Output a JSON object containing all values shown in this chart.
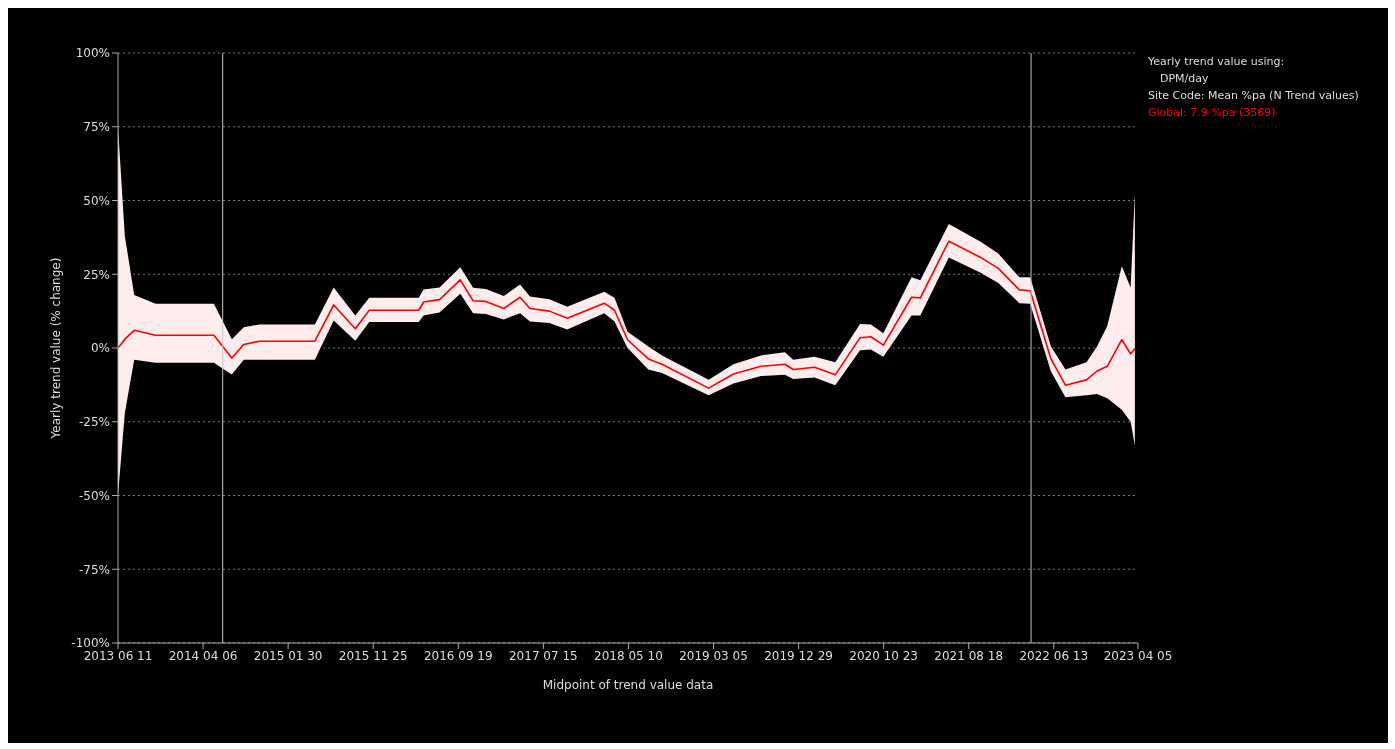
{
  "chart_data": {
    "type": "line",
    "xlabel": "Midpoint of trend value data",
    "ylabel": "Yearly trend value (% change)",
    "legend_title": "Yearly trend value using:",
    "annotations": [
      "DPM/day",
      "Site Code: Mean %pa (N Trend values)"
    ],
    "x": [
      "2013-06-11",
      "2013-07-05",
      "2013-08-07",
      "2013-10-21",
      "2014-05-14",
      "2014-07-16",
      "2014-08-27",
      "2014-10-21",
      "2015-05-04",
      "2015-07-09",
      "2015-09-23",
      "2015-11-11",
      "2016-05-03",
      "2016-05-20",
      "2016-07-15",
      "2016-09-26",
      "2016-11-10",
      "2016-12-25",
      "2017-02-26",
      "2017-04-24",
      "2017-05-29",
      "2017-08-05",
      "2017-10-07",
      "2018-02-14",
      "2018-03-22",
      "2018-05-07",
      "2018-07-19",
      "2018-09-05",
      "2019-02-16",
      "2019-05-14",
      "2019-08-19",
      "2019-11-11",
      "2019-12-10",
      "2020-02-23",
      "2020-05-06",
      "2020-08-01",
      "2020-09-08",
      "2020-10-22",
      "2021-01-29",
      "2021-03-01",
      "2021-06-09",
      "2021-09-29",
      "2021-11-30",
      "2022-02-12",
      "2022-03-22",
      "2022-06-03",
      "2022-07-24",
      "2022-10-06",
      "2022-11-12",
      "2022-12-18",
      "2023-02-07",
      "2023-03-10",
      "2023-03-25"
    ],
    "series": [
      {
        "name": "Global: 7.9 %pa (3569)",
        "color": "#ff0000",
        "values": [
          0,
          3,
          6,
          4.3,
          4.3,
          -3.4,
          1.2,
          2.3,
          2.3,
          14.6,
          6.5,
          12.8,
          12.8,
          15.6,
          16.4,
          23.1,
          16,
          15.8,
          13.4,
          17.2,
          13.4,
          12.5,
          10.1,
          15.2,
          12.8,
          2.8,
          -3.7,
          -5.5,
          -13.6,
          -8.8,
          -6.2,
          -5.5,
          -7.3,
          -6.5,
          -9.1,
          3.5,
          3.8,
          1,
          17.2,
          17,
          36.2,
          30.7,
          27,
          19.7,
          19.4,
          -3.7,
          -12.6,
          -10.8,
          -7.8,
          -6.2,
          2.8,
          -2,
          -0.2
        ],
        "upper": [
          75,
          38,
          18,
          15,
          15,
          3,
          7,
          8,
          8,
          20.5,
          11,
          17,
          17,
          19.8,
          20.5,
          27.4,
          20.4,
          20,
          17.6,
          21.5,
          17.5,
          16.5,
          14,
          19.1,
          17,
          5.5,
          0.5,
          -2.5,
          -10.8,
          -5.5,
          -2.5,
          -1.4,
          -4,
          -3,
          -4.8,
          8.1,
          8,
          5,
          24,
          23,
          42,
          36,
          32,
          24,
          24,
          0.5,
          -7.3,
          -4.8,
          0.5,
          7.5,
          27.7,
          20.5,
          52.6
        ],
        "lower": [
          -50,
          -22,
          -4,
          -5,
          -5,
          -9,
          -4,
          -4,
          -4,
          9.3,
          2.5,
          8.8,
          8.8,
          11,
          12,
          18.4,
          11.8,
          11.5,
          9.7,
          11.8,
          9,
          8.5,
          6.3,
          11.8,
          9,
          0,
          -7.3,
          -8.5,
          -16,
          -12,
          -9.5,
          -9.1,
          -10.5,
          -10,
          -12.6,
          -0.8,
          -0.5,
          -3,
          11,
          11,
          30.7,
          25.5,
          22,
          15.2,
          15,
          -8,
          -16.7,
          -16,
          -15.6,
          -17,
          -20.9,
          -25,
          -33
        ]
      }
    ],
    "xlim": [
      "2013-06-11",
      "2023-04-05"
    ],
    "xticks": [
      {
        "value": "2013-06-11",
        "label": "2013 06 11"
      },
      {
        "value": "2014-04-06",
        "label": "2014 04 06"
      },
      {
        "value": "2015-01-30",
        "label": "2015 01 30"
      },
      {
        "value": "2015-11-25",
        "label": "2015 11 25"
      },
      {
        "value": "2016-09-19",
        "label": "2016 09 19"
      },
      {
        "value": "2017-07-15",
        "label": "2017 07 15"
      },
      {
        "value": "2018-05-10",
        "label": "2018 05 10"
      },
      {
        "value": "2019-03-05",
        "label": "2019 03 05"
      },
      {
        "value": "2019-12-29",
        "label": "2019 12 29"
      },
      {
        "value": "2020-10-23",
        "label": "2020 10 23"
      },
      {
        "value": "2021-08-18",
        "label": "2021 08 18"
      },
      {
        "value": "2022-06-13",
        "label": "2022 06 13"
      },
      {
        "value": "2023-04-05",
        "label": "2023 04 05"
      }
    ],
    "ylim": [
      -100,
      100
    ],
    "yticks": [
      {
        "value": -100,
        "label": "-100%"
      },
      {
        "value": -75,
        "label": "-75%"
      },
      {
        "value": -50,
        "label": "-50%"
      },
      {
        "value": -25,
        "label": "-25%"
      },
      {
        "value": 0,
        "label": "0%"
      },
      {
        "value": 25,
        "label": "25%"
      },
      {
        "value": 50,
        "label": "50%"
      },
      {
        "value": 75,
        "label": "75%"
      },
      {
        "value": 100,
        "label": "100%"
      }
    ],
    "ref_lines": [
      {
        "axis": "x",
        "value": "2014-06-14",
        "color": "#c8c8c8"
      },
      {
        "axis": "x",
        "value": "2022-03-25",
        "color": "#c8c8c8"
      }
    ],
    "grid": "y",
    "legend": "top right",
    "marker": "none",
    "line_style": "solid"
  }
}
